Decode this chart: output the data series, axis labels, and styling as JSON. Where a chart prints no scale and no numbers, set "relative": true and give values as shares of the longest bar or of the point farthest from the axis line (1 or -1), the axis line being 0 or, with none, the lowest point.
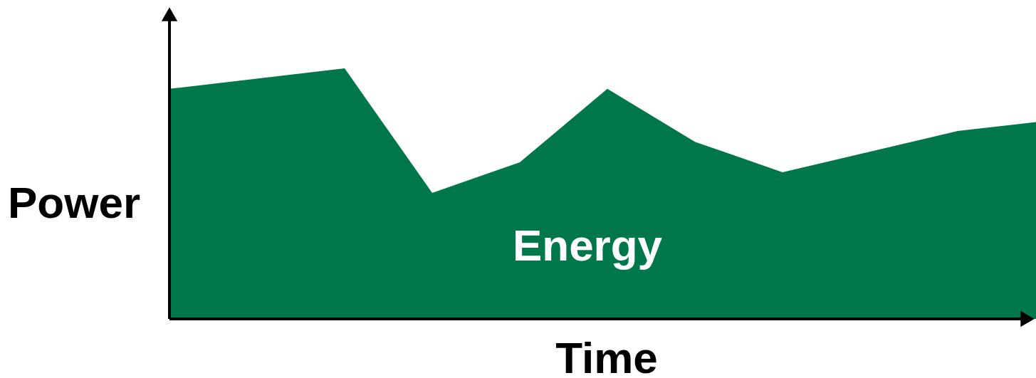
{
  "chart_data": {
    "type": "area",
    "relative": true,
    "xlabel": "Time",
    "ylabel": "Power",
    "categories": [
      null,
      null,
      null,
      null,
      null,
      null,
      null,
      null,
      null,
      null,
      null
    ],
    "series": [
      {
        "color": "#00774a",
        "values": [
          0.918,
          null,
          1,
          0.503,
          0.625,
          0.918,
          0.707,
          0.585,
          null,
          0.75,
          0.79
        ]
      }
    ],
    "annotations": [
      "Energy"
    ]
  }
}
